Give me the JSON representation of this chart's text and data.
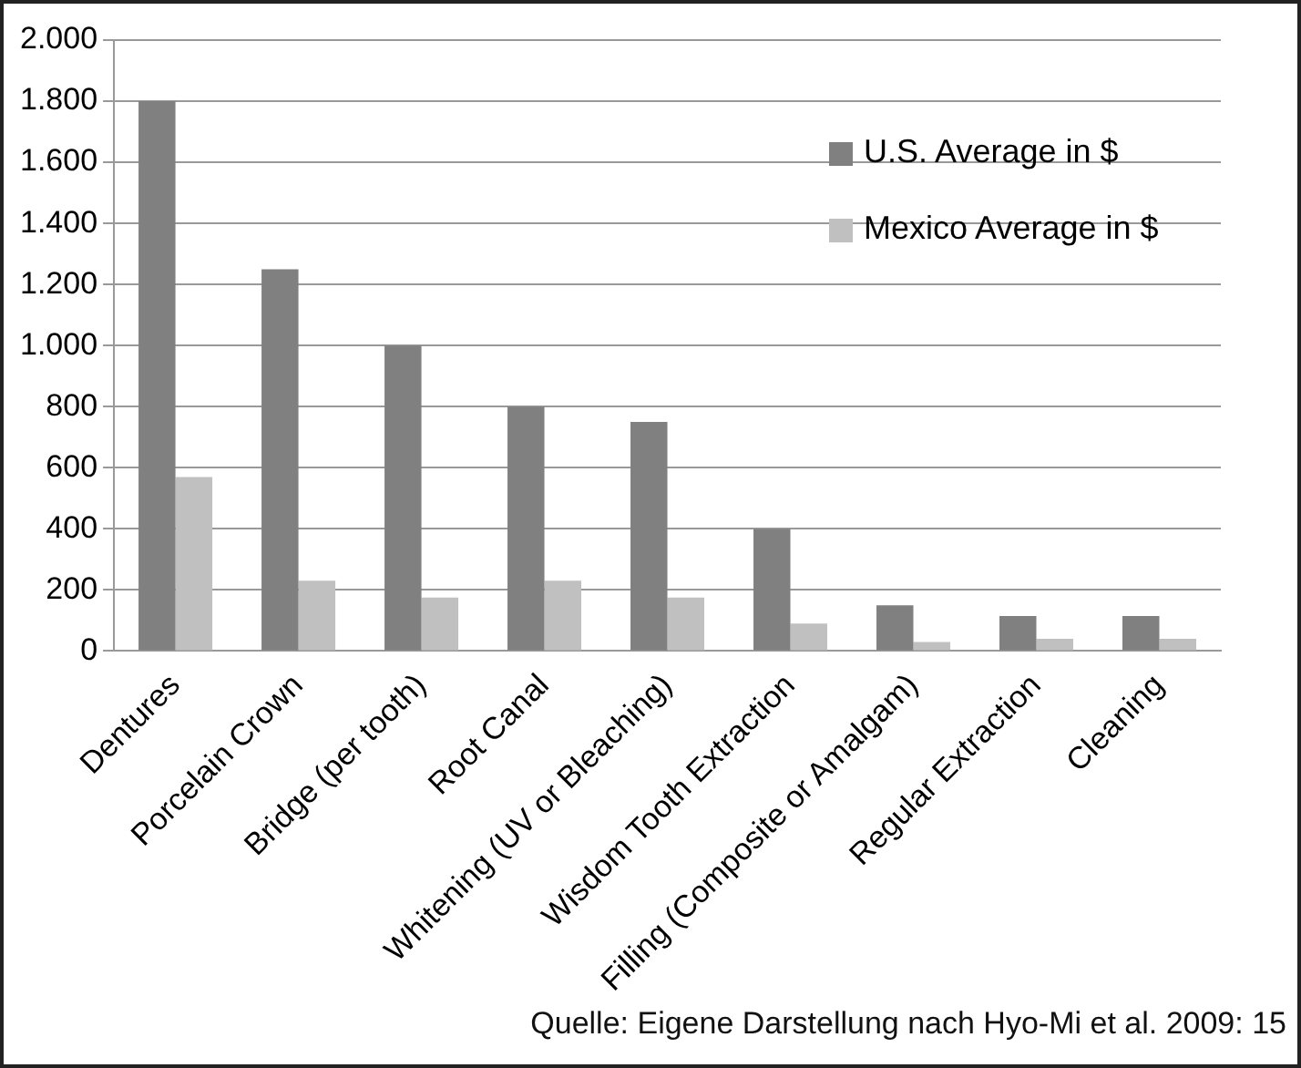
{
  "chart_data": {
    "type": "bar",
    "categories": [
      "Dentures",
      "Porcelain Crown",
      "Bridge (per tooth)",
      "Root Canal",
      "Whitening (UV or Bleaching)",
      "Wisdom Tooth Extraction",
      "Filling (Composite or Amalgam)",
      "Regular Extraction",
      "Cleaning"
    ],
    "series": [
      {
        "name": "U.S. Average in $",
        "color": "#808080",
        "values": [
          1800,
          1250,
          1000,
          800,
          750,
          400,
          150,
          115,
          115
        ]
      },
      {
        "name": "Mexico Average in $",
        "color": "#c0c0c0",
        "values": [
          570,
          230,
          175,
          230,
          175,
          90,
          30,
          40,
          40
        ]
      }
    ],
    "ylim": [
      0,
      2000
    ],
    "yticks": [
      0,
      200,
      400,
      600,
      800,
      {
        "value": 1000,
        "label": "1.000"
      },
      {
        "value": 1200,
        "label": "1.200"
      },
      {
        "value": 1400,
        "label": "1.400"
      },
      {
        "value": 1600,
        "label": "1.600"
      },
      {
        "value": 1800,
        "label": "1.800"
      },
      {
        "value": 2000,
        "label": "2.000"
      }
    ],
    "grid": "y",
    "legend": "top right",
    "annotations": [
      "Quelle: Eigene Darstellung nach Hyo-Mi et al. 2009: 15"
    ]
  }
}
